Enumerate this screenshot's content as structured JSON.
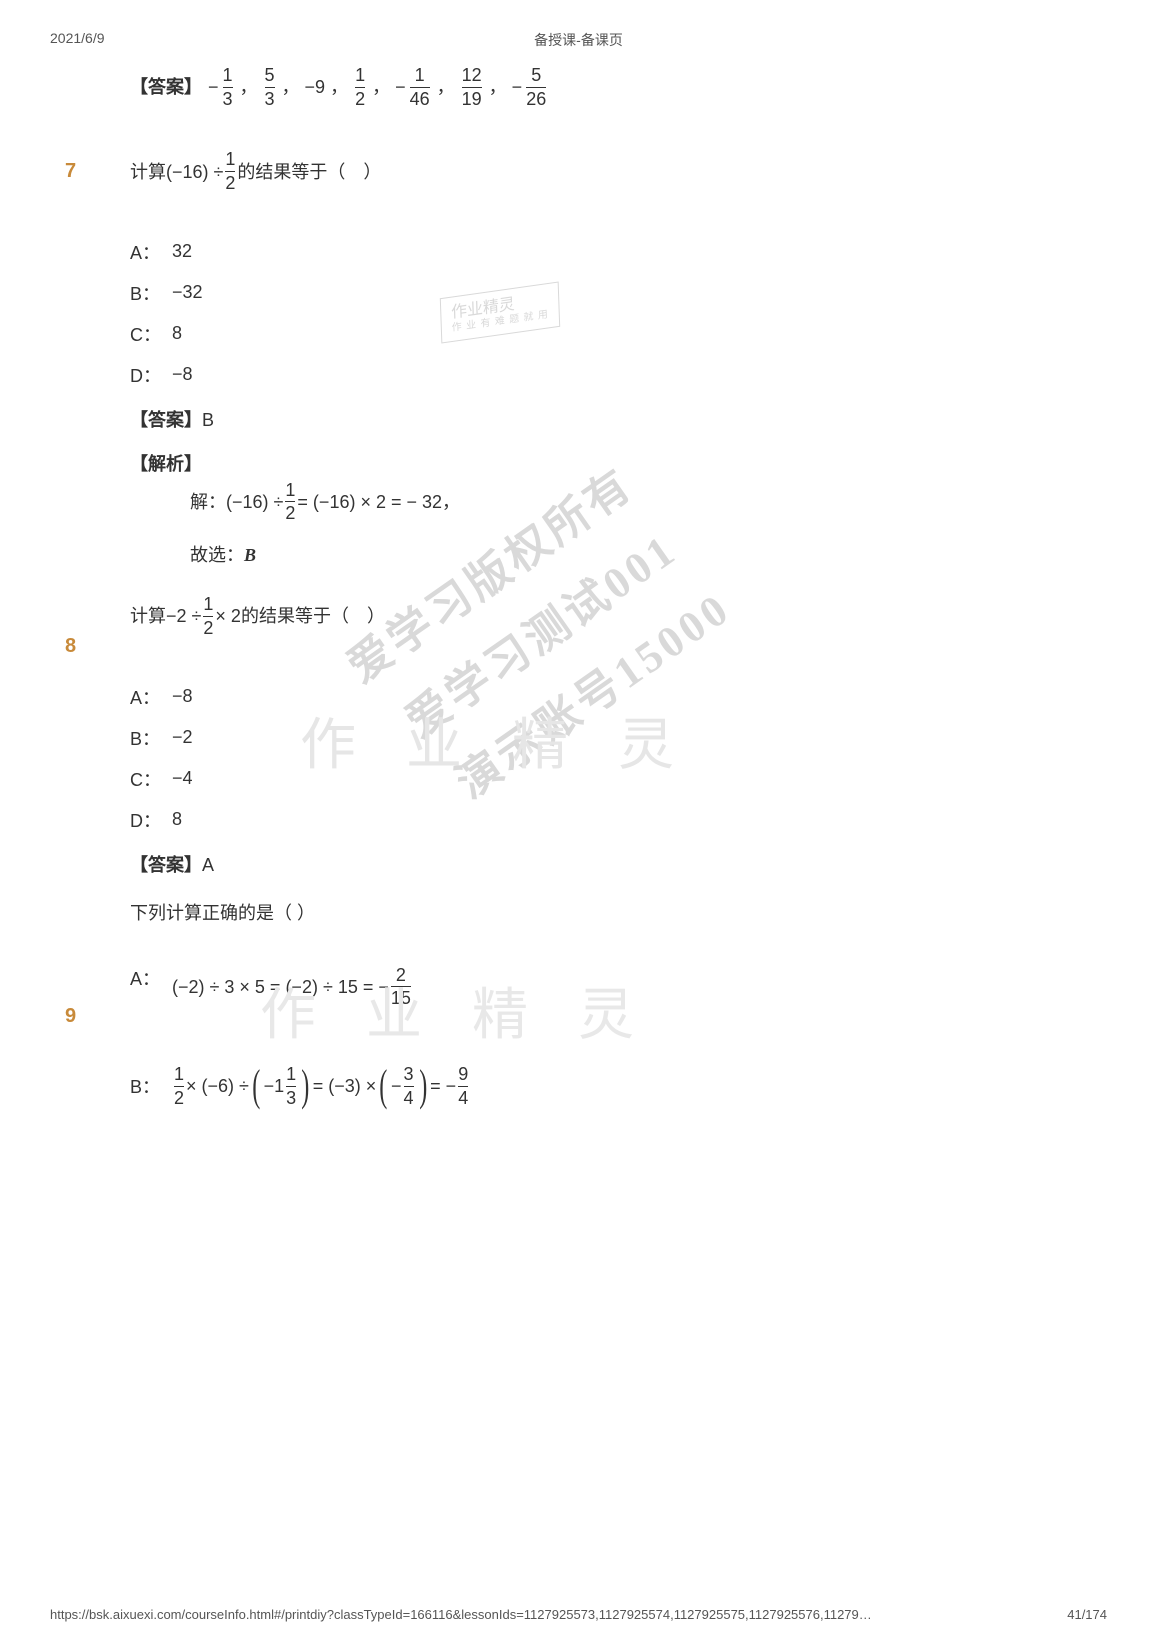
{
  "header": {
    "date": "2021/6/9",
    "title": "备授课-备课页"
  },
  "labels": {
    "answer": "【答案】",
    "analysis": "【解析】"
  },
  "q6answer": {
    "items": [
      {
        "pre": "−",
        "num": "1",
        "den": "3"
      },
      {
        "sep": "，",
        "pre": "",
        "num": "5",
        "den": "3"
      },
      {
        "sep": "，",
        "plain": "−9"
      },
      {
        "sep": "，",
        "pre": "",
        "num": "1",
        "den": "2"
      },
      {
        "sep": "，",
        "pre": "−",
        "num": "1",
        "den": "46"
      },
      {
        "sep": "，",
        "pre": "",
        "num": "12",
        "den": "19"
      },
      {
        "sep": "，",
        "pre": "−",
        "num": "5",
        "den": "26"
      }
    ]
  },
  "q7": {
    "num": "7",
    "stem_pre": "计算(−16) ÷ ",
    "frac": {
      "num": "1",
      "den": "2"
    },
    "stem_post": "的结果等于（　）",
    "options": {
      "A": "32",
      "B": "−32",
      "C": "8",
      "D": "−8"
    },
    "answer": "B",
    "solution_pre": "解：(−16) ÷ ",
    "solution_frac": {
      "num": "1",
      "den": "2"
    },
    "solution_post": " = (−16) × 2 =  − 32，",
    "solution_tail_pre": "故选：",
    "solution_tail_val": "B"
  },
  "q8": {
    "num": "8",
    "stem_pre": "计算−2 ÷ ",
    "frac": {
      "num": "1",
      "den": "2"
    },
    "stem_post": " × 2的结果等于（　）",
    "options": {
      "A": "−8",
      "B": "−2",
      "C": "−4",
      "D": "8"
    },
    "answer": "A"
  },
  "q9": {
    "num": "9",
    "stem": "下列计算正确的是（ ）",
    "optA": {
      "letter": "A：",
      "lhs": "(−2) ÷ 3 × 5 = (−2) ÷ 15 =  − ",
      "frac": {
        "num": "2",
        "den": "15"
      }
    },
    "optB": {
      "letter": "B：",
      "f1": {
        "num": "1",
        "den": "2"
      },
      "t1": " × (−6) ÷ ",
      "f2_pre": "−1",
      "f2": {
        "num": "1",
        "den": "3"
      },
      "t2": " = (−3) × ",
      "f3_pre": "−",
      "f3": {
        "num": "3",
        "den": "4"
      },
      "t3": " =  − ",
      "f4": {
        "num": "9",
        "den": "4"
      }
    }
  },
  "footer": {
    "url": "https://bsk.aixuexi.com/courseInfo.html#/printdiy?classTypeId=166116&lessonIds=1127925573,1127925574,1127925575,1127925576,11279…",
    "page": "41/174"
  },
  "watermarks": {
    "book": "作业精灵",
    "main1": "爱学习版权所有",
    "main2": "爱学习测试001",
    "main3": "演示账号15000",
    "calli": "作 业 精 灵"
  }
}
